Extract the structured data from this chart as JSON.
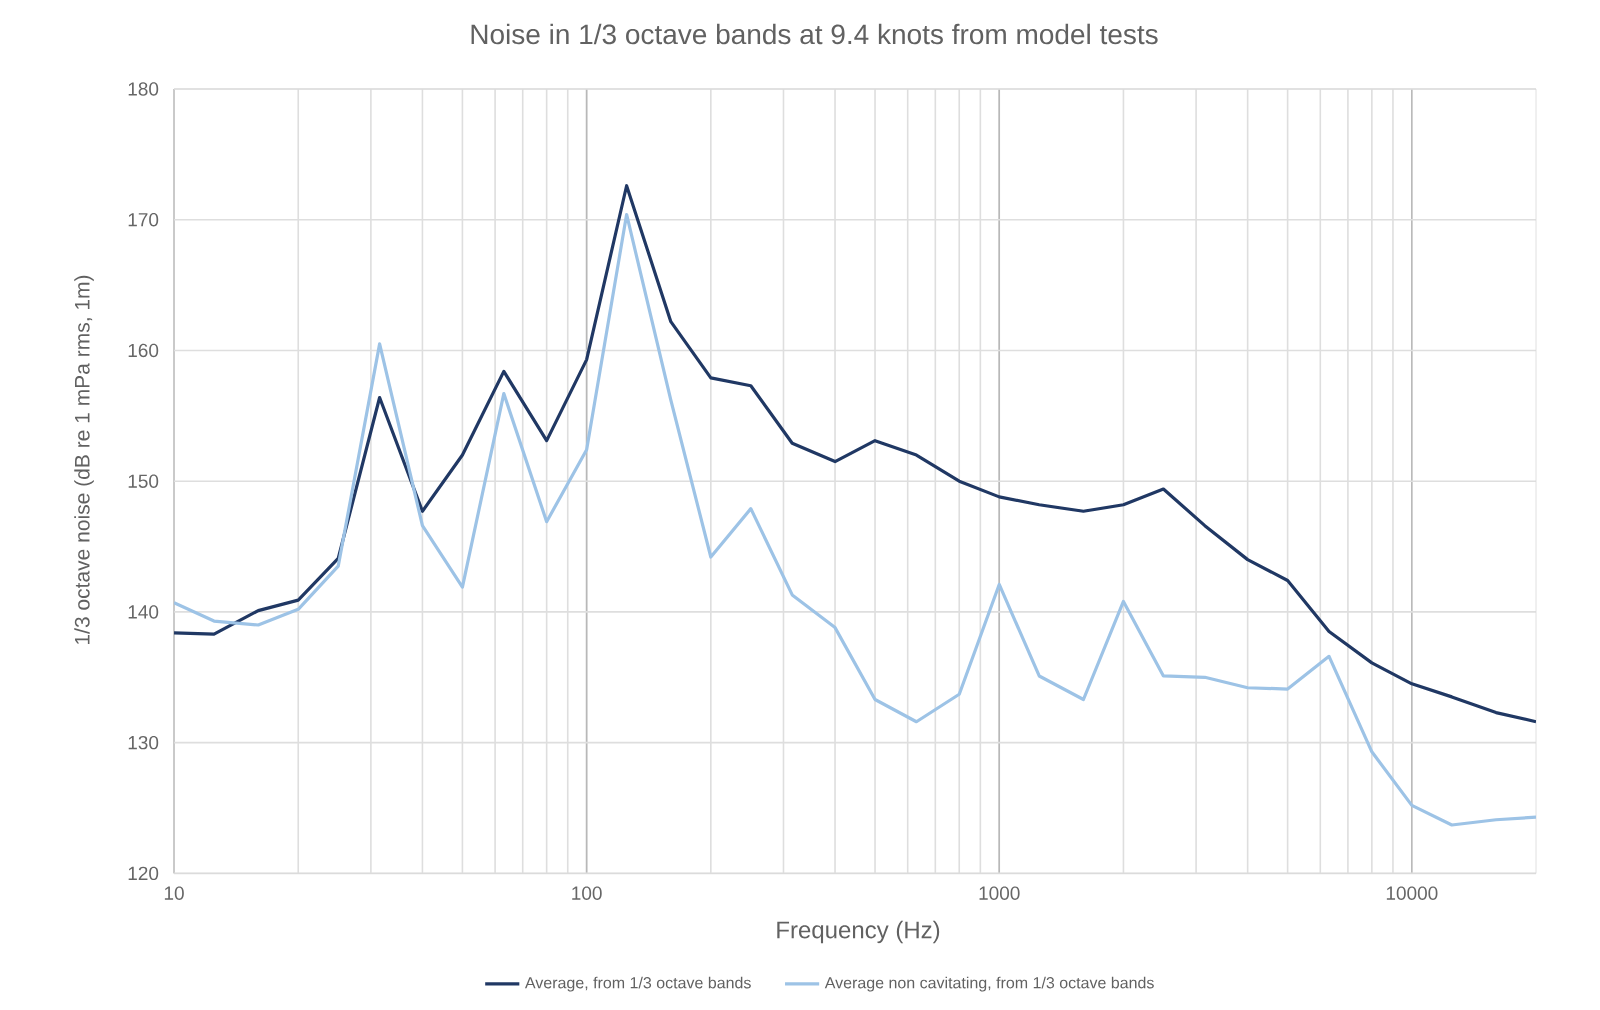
{
  "chart_data": {
    "type": "line",
    "title": "Noise in 1/3 octave bands at 9.4 knots from model tests",
    "xlabel": "Frequency (Hz)",
    "ylabel": "1/3 octave noise (dB re 1 mPa rms, 1m)",
    "x": [
      10,
      12.5,
      16,
      20,
      25,
      31.5,
      40,
      50,
      63,
      80,
      100,
      125,
      160,
      200,
      250,
      315,
      400,
      500,
      630,
      800,
      1000,
      1250,
      1600,
      2000,
      2500,
      3150,
      4000,
      5000,
      6300,
      8000,
      10000,
      12500,
      16000,
      20000
    ],
    "series": [
      {
        "name": "Average, from 1/3 octave bands",
        "color": "#203864",
        "values": [
          138.4,
          138.3,
          140.1,
          140.9,
          144.1,
          156.4,
          147.7,
          152.0,
          158.4,
          153.1,
          159.3,
          172.6,
          162.2,
          157.9,
          157.3,
          152.9,
          151.5,
          153.1,
          152.0,
          150.0,
          148.8,
          148.2,
          147.7,
          148.2,
          149.4,
          146.6,
          144.0,
          142.4,
          138.5,
          136.1,
          134.5,
          133.5,
          132.3,
          131.6
        ]
      },
      {
        "name": "Average non cavitating, from 1/3 octave bands",
        "color": "#9dc3e6",
        "values": [
          140.7,
          139.3,
          139.0,
          140.2,
          143.5,
          160.5,
          146.6,
          141.9,
          156.7,
          146.9,
          152.4,
          170.4,
          156.2,
          144.2,
          147.9,
          141.3,
          138.8,
          133.3,
          131.6,
          133.7,
          142.1,
          135.1,
          133.3,
          140.8,
          135.1,
          135.0,
          134.2,
          134.1,
          136.6,
          129.3,
          125.2,
          123.7,
          124.1,
          124.3
        ]
      }
    ],
    "xlim": [
      10,
      20000
    ],
    "ylim": [
      120,
      180
    ],
    "xticks": [
      10,
      100,
      1000,
      10000
    ],
    "yticks": [
      120,
      130,
      140,
      150,
      160,
      170,
      180
    ],
    "log": "x",
    "grid": true,
    "legend": "bottom",
    "marker": "none",
    "line_style": "solid"
  }
}
